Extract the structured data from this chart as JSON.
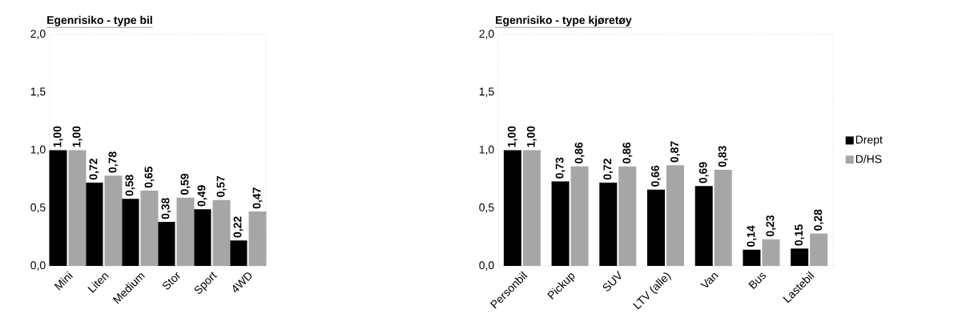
{
  "chart_data": [
    {
      "type": "bar",
      "title": "Egenrisiko - type bil",
      "categories": [
        "Mini",
        "Liten",
        "Medium",
        "Stor",
        "Sport",
        "4WD"
      ],
      "series": [
        {
          "color": "#000000",
          "values": [
            1.0,
            0.72,
            0.58,
            0.38,
            0.49,
            0.22
          ],
          "value_labels": [
            "1,00",
            "0,72",
            "0,58",
            "0,38",
            "0,49",
            "0,22"
          ]
        },
        {
          "color": "#a6a6a6",
          "values": [
            1.0,
            0.78,
            0.65,
            0.59,
            0.57,
            0.47
          ],
          "value_labels": [
            "1,00",
            "0,78",
            "0,65",
            "0,59",
            "0,57",
            "0,47"
          ]
        }
      ],
      "ylim": [
        0,
        2
      ],
      "yticks": [
        {
          "value": 0,
          "label": "0,0"
        },
        {
          "value": 0.5,
          "label": "0,5"
        },
        {
          "value": 1,
          "label": "1,0"
        },
        {
          "value": 1.5,
          "label": "1,5"
        },
        {
          "value": 2,
          "label": "2,0"
        }
      ]
    },
    {
      "type": "bar",
      "title": "Egenrisiko - type kjøretøy",
      "categories": [
        "Personbil",
        "Pickup",
        "SUV",
        "LTV (alle)",
        "Van",
        "Bus",
        "Lastebil"
      ],
      "series": [
        {
          "name": "Drept",
          "color": "#000000",
          "values": [
            1.0,
            0.73,
            0.72,
            0.66,
            0.69,
            0.14,
            0.15
          ],
          "value_labels": [
            "1,00",
            "0,73",
            "0,72",
            "0,66",
            "0,69",
            "0,14",
            "0,15"
          ]
        },
        {
          "name": "D/HS",
          "color": "#a6a6a6",
          "values": [
            1.0,
            0.86,
            0.86,
            0.87,
            0.83,
            0.23,
            0.28
          ],
          "value_labels": [
            "1,00",
            "0,86",
            "0,86",
            "0,87",
            "0,83",
            "0,23",
            "0,28"
          ]
        }
      ],
      "ylim": [
        0,
        2
      ],
      "yticks": [
        {
          "value": 0,
          "label": "0,0"
        },
        {
          "value": 0.5,
          "label": "0,5"
        },
        {
          "value": 1,
          "label": "1,0"
        },
        {
          "value": 1.5,
          "label": "1,5"
        },
        {
          "value": 2,
          "label": "2,0"
        }
      ],
      "legend": "right"
    }
  ]
}
